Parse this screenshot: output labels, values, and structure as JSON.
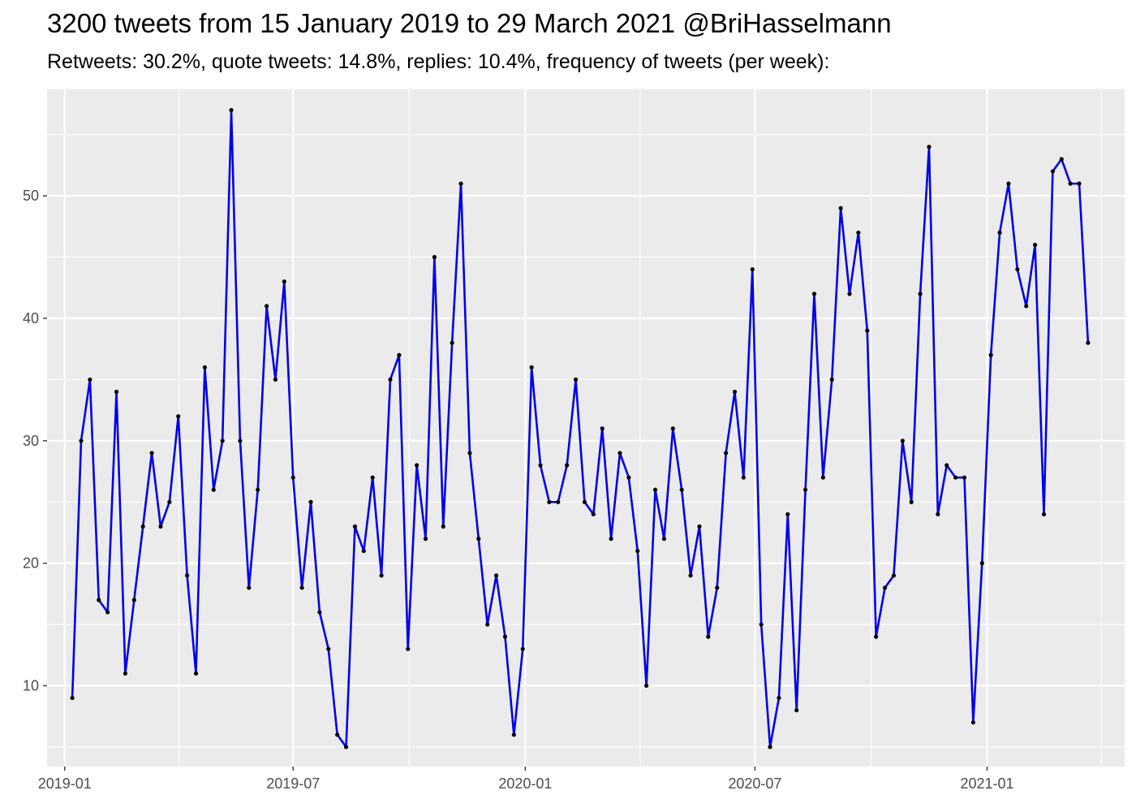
{
  "chart_data": {
    "type": "line",
    "title": "3200 tweets from 15 January 2019 to 29 March 2021 @BriHasselmann",
    "subtitle": "Retweets: 30.2%, quote tweets: 14.8%, replies: 10.4%, frequency of tweets (per week):",
    "xlabel": "",
    "ylabel": "",
    "x_start": "2019-01-07",
    "x_step_days": 7,
    "x_ticks": [
      "2019-01",
      "2019-07",
      "2020-01",
      "2020-07",
      "2021-01"
    ],
    "y_ticks": [
      10,
      20,
      30,
      40,
      50
    ],
    "ylim": [
      3.4,
      58.7
    ],
    "xlim": [
      "2018-12-18",
      "2021-04-20"
    ],
    "grid": true,
    "colors": {
      "line": "#0000ee",
      "point": "#000000",
      "panel": "#ebebeb",
      "grid": "#ffffff"
    },
    "series": [
      {
        "values": [
          9,
          30,
          35,
          17,
          16,
          34,
          11,
          17,
          23,
          29,
          23,
          25,
          32,
          19,
          11,
          36,
          26,
          30,
          57,
          30,
          18,
          26,
          41,
          35,
          43,
          27,
          18,
          25,
          16,
          13,
          6,
          5,
          23,
          21,
          27,
          19,
          35,
          37,
          13,
          28,
          22,
          45,
          23,
          38,
          51,
          29,
          22,
          15,
          19,
          14,
          6,
          13,
          36,
          28,
          25,
          25,
          28,
          35,
          25,
          24,
          31,
          22,
          29,
          27,
          21,
          10,
          26,
          22,
          31,
          26,
          19,
          23,
          14,
          18,
          29,
          34,
          27,
          44,
          15,
          5,
          9,
          24,
          8,
          26,
          42,
          27,
          35,
          49,
          42,
          47,
          39,
          14,
          18,
          19,
          30,
          25,
          42,
          54,
          24,
          28,
          27,
          27,
          7,
          20,
          37,
          47,
          51,
          44,
          41,
          46,
          24,
          52,
          53,
          51,
          51,
          38
        ]
      }
    ]
  }
}
